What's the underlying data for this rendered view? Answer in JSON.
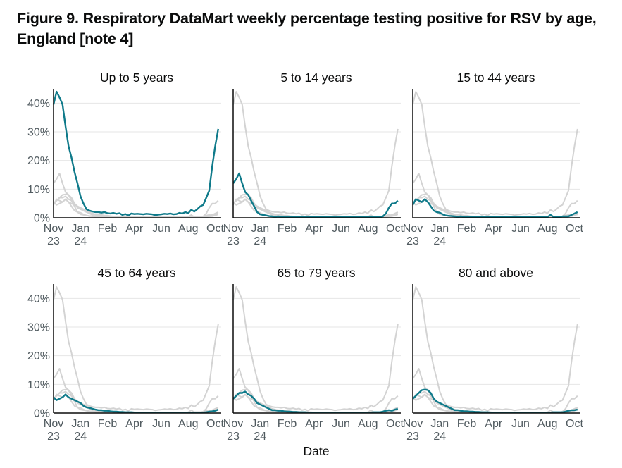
{
  "figure": {
    "title": "Figure 9. Respiratory DataMart weekly percentage testing positive for RSV by age, England [note 4]"
  },
  "colors": {
    "highlight": "#0f7a8a",
    "background_series": "#d3d3d3",
    "axis": "#0b0c0c",
    "grid": "#e6e6e6"
  },
  "chart_data": {
    "type": "line",
    "xlabel": "Date",
    "ylabel": "",
    "ylim": [
      0,
      45
    ],
    "yticks": [
      0,
      10,
      20,
      30,
      40
    ],
    "ytick_labels": [
      "0%",
      "10%",
      "20%",
      "30%",
      "40%"
    ],
    "x_weeks": 52,
    "xticks": [
      {
        "week": 0,
        "line1": "Nov",
        "line2": "23"
      },
      {
        "week": 9,
        "line1": "Jan",
        "line2": "24"
      },
      {
        "week": 18,
        "line1": "Feb",
        "line2": ""
      },
      {
        "week": 27,
        "line1": "Apr",
        "line2": ""
      },
      {
        "week": 36,
        "line1": "Jun",
        "line2": ""
      },
      {
        "week": 45,
        "line1": "Aug",
        "line2": ""
      },
      {
        "week": 54,
        "line1": "Oct",
        "line2": ""
      }
    ],
    "series": [
      {
        "name": "Up to 5 years",
        "values": [
          39.5,
          44,
          42,
          39.5,
          32,
          25,
          21,
          16,
          12,
          7.5,
          5,
          3,
          2.5,
          2.2,
          2.0,
          2.0,
          1.8,
          2.0,
          1.6,
          1.5,
          1.7,
          1.4,
          1.6,
          1.0,
          1.3,
          0.8,
          1.5,
          1.3,
          1.4,
          1.3,
          1.2,
          1.4,
          1.3,
          1.2,
          0.9,
          1.1,
          1.2,
          1.4,
          1.3,
          1.5,
          1.2,
          1.3,
          1.7,
          1.5,
          2.0,
          1.6,
          2.8,
          2.2,
          3.0,
          4.0,
          4.5,
          7.0,
          9.5,
          18,
          25,
          31
        ]
      },
      {
        "name": "5 to 14 years",
        "values": [
          12,
          13.5,
          15.5,
          12,
          9,
          8,
          6,
          4,
          2,
          1.2,
          1.0,
          0.8,
          0.6,
          0.5,
          0.4,
          0.5,
          0.4,
          0.4,
          0.3,
          0.3,
          0.3,
          0.2,
          0.2,
          0.2,
          0.3,
          0.2,
          0.2,
          0.2,
          0.2,
          0.2,
          0.2,
          0.2,
          0.2,
          0.2,
          0.2,
          0.2,
          0.2,
          0.2,
          0.2,
          0.2,
          0.2,
          0.2,
          0.2,
          0.2,
          0.2,
          0.2,
          0.2,
          0.2,
          0.2,
          0.3,
          0.5,
          1.5,
          3.5,
          5.0,
          5.0,
          6.0
        ]
      },
      {
        "name": "15 to 44 years",
        "values": [
          4.5,
          6.5,
          6,
          5.5,
          6.5,
          5.5,
          4,
          2.5,
          2,
          1.8,
          1.2,
          0.8,
          0.7,
          0.6,
          0.5,
          0.4,
          0.5,
          0.4,
          0.3,
          0.3,
          0.3,
          0.2,
          0.2,
          0.2,
          0.2,
          0.2,
          0.2,
          0.2,
          0.2,
          0.2,
          0.2,
          0.2,
          0.2,
          0.2,
          0.2,
          0.2,
          0.2,
          0.2,
          0.2,
          0.2,
          0.2,
          0.2,
          0.2,
          0.2,
          0.2,
          0.3,
          1.0,
          0.3,
          0.3,
          0.3,
          0.5,
          0.5,
          0.5,
          1.0,
          1.5,
          2.0
        ]
      },
      {
        "name": "45 to 64 years",
        "values": [
          5.5,
          4.5,
          5,
          5.5,
          6.5,
          5.5,
          5,
          4.5,
          4,
          3.5,
          2.5,
          2,
          1.8,
          1.5,
          1.2,
          1.0,
          1.0,
          0.8,
          0.8,
          0.6,
          0.5,
          0.5,
          0.4,
          0.4,
          0.3,
          0.3,
          0.3,
          0.2,
          0.2,
          0.2,
          0.2,
          0.2,
          0.2,
          0.2,
          0.2,
          0.2,
          0.2,
          0.2,
          0.2,
          0.2,
          0.2,
          0.2,
          0.2,
          0.2,
          0.2,
          0.2,
          0.2,
          0.2,
          0.2,
          0.2,
          0.2,
          0.3,
          0.5,
          0.6,
          0.8,
          1.2
        ]
      },
      {
        "name": "65 to 79 years",
        "values": [
          5,
          6,
          7,
          7,
          7.5,
          6.5,
          6,
          5,
          3.5,
          3,
          2.5,
          2,
          1.5,
          1.0,
          1.0,
          0.8,
          0.8,
          0.6,
          0.5,
          0.5,
          0.4,
          0.4,
          0.3,
          0.3,
          0.3,
          0.2,
          0.2,
          0.2,
          0.2,
          0.2,
          0.2,
          0.2,
          0.2,
          0.2,
          0.2,
          0.2,
          0.2,
          0.2,
          0.2,
          0.2,
          0.2,
          0.2,
          0.2,
          0.2,
          0.2,
          0.2,
          0.2,
          0.3,
          0.3,
          0.3,
          0.5,
          0.8,
          1.0,
          0.8,
          1.2,
          1.5
        ]
      },
      {
        "name": "80 and above",
        "values": [
          5,
          6,
          7,
          8,
          8.2,
          8,
          7,
          5,
          4,
          3.5,
          3,
          2.5,
          2,
          1.5,
          1.0,
          1.0,
          0.8,
          0.6,
          0.6,
          0.5,
          0.5,
          0.4,
          0.4,
          0.3,
          0.3,
          0.3,
          0.2,
          0.2,
          0.2,
          0.2,
          0.2,
          0.2,
          0.2,
          0.2,
          0.2,
          0.2,
          0.2,
          0.2,
          0.2,
          0.2,
          0.2,
          0.2,
          0.2,
          0.2,
          0.2,
          0.2,
          0.2,
          0.3,
          0.3,
          0.3,
          0.3,
          0.5,
          0.8,
          1.0,
          1.0,
          1.2
        ]
      }
    ]
  }
}
